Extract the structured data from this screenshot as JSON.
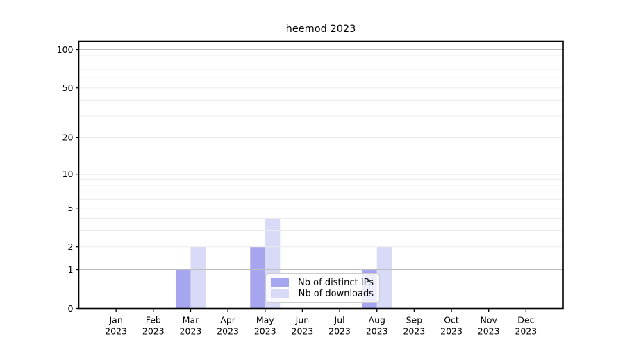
{
  "chart_data": {
    "type": "bar",
    "title": "heemod 2023",
    "categories": [
      "Jan 2023",
      "Feb 2023",
      "Mar 2023",
      "Apr 2023",
      "May 2023",
      "Jun 2023",
      "Jul 2023",
      "Aug 2023",
      "Sep 2023",
      "Oct 2023",
      "Nov 2023",
      "Dec 2023"
    ],
    "series": [
      {
        "name": "Nb of distinct IPs",
        "color": "#a5a5f0",
        "values": [
          0,
          0,
          1,
          0,
          2,
          0,
          0,
          1,
          0,
          0,
          0,
          0
        ]
      },
      {
        "name": "Nb of downloads",
        "color": "#d9d9f8",
        "values": [
          0,
          0,
          2,
          0,
          4,
          0,
          0,
          2,
          0,
          0,
          0,
          0
        ]
      }
    ],
    "y_axis": {
      "scale": "log1p",
      "ticks": [
        0,
        1,
        2,
        5,
        10,
        20,
        50,
        100
      ],
      "limit": [
        0,
        100
      ],
      "major_gridlines": [
        1,
        10,
        100
      ],
      "minor_gridlines": [
        2,
        3,
        4,
        5,
        6,
        7,
        8,
        9,
        20,
        30,
        40,
        50,
        60,
        70,
        80,
        90
      ]
    },
    "xlabel": "",
    "ylabel": "",
    "grid": true,
    "legend_position": "lower center"
  },
  "colors": {
    "background": "#ffffff",
    "axis_spine": "#000000",
    "tick_text": "#000000",
    "major_grid": "#bdbdbd",
    "minor_grid": "#ececec",
    "legend_border": "#cccccc"
  }
}
